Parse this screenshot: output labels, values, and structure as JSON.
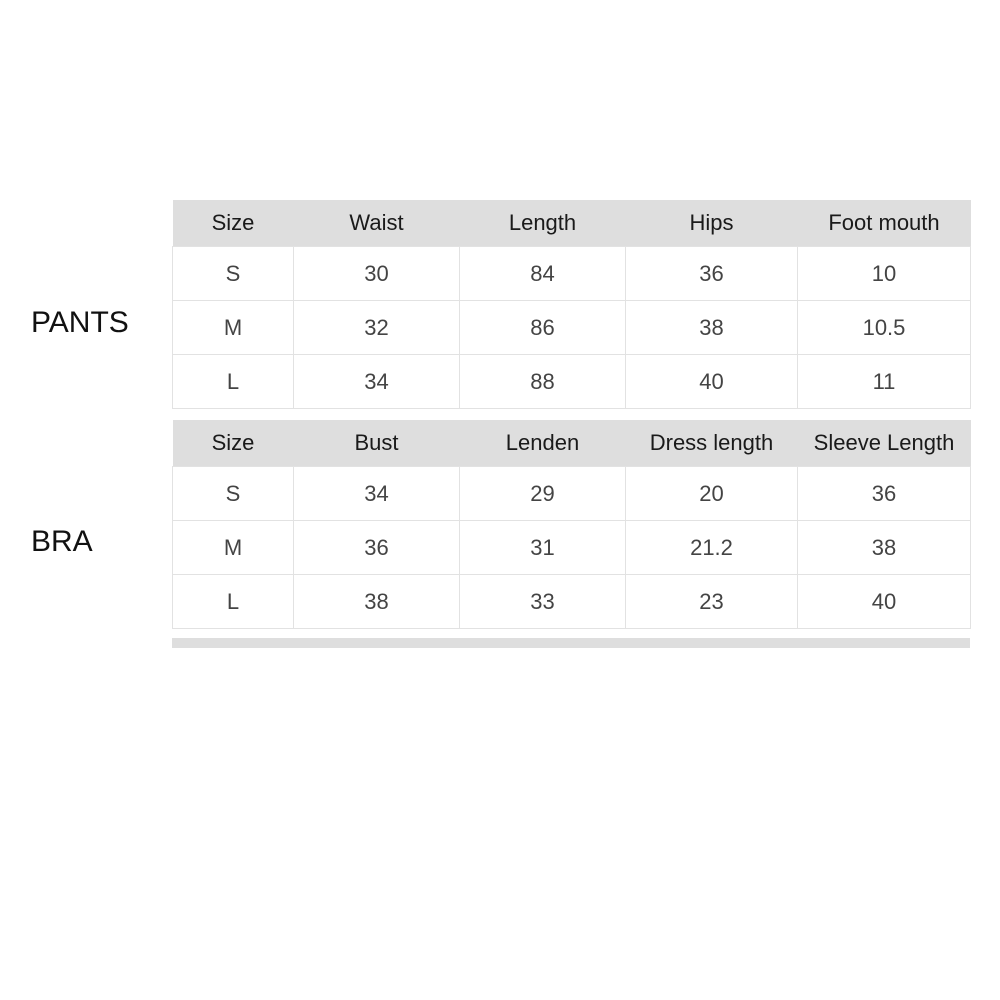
{
  "pants": {
    "label": "PANTS",
    "headers": [
      "Size",
      "Waist",
      "Length",
      "Hips",
      "Foot mouth"
    ],
    "rows": [
      [
        "S",
        "30",
        "84",
        "36",
        "10"
      ],
      [
        "M",
        "32",
        "86",
        "38",
        "10.5"
      ],
      [
        "L",
        "34",
        "88",
        "40",
        "11"
      ]
    ]
  },
  "bra": {
    "label": "BRA",
    "headers": [
      "Size",
      "Bust",
      "Lenden",
      "Dress length",
      "Sleeve Length"
    ],
    "rows": [
      [
        "S",
        "34",
        "29",
        "20",
        "36"
      ],
      [
        "M",
        "36",
        "31",
        "21.2",
        "38"
      ],
      [
        "L",
        "38",
        "33",
        "23",
        "40"
      ]
    ]
  }
}
